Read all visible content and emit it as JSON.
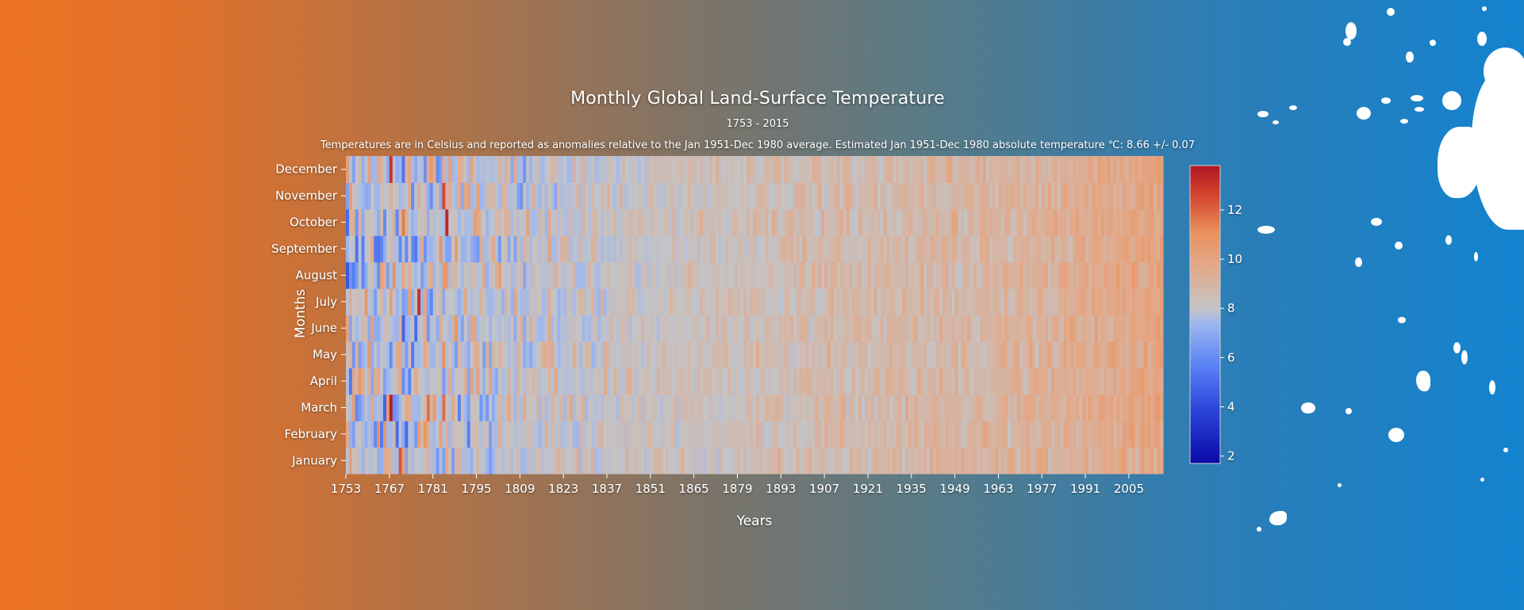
{
  "colors": {
    "scale": [
      "#0a0aa8",
      "#2a45d8",
      "#5a82f5",
      "#9db6ef",
      "#c4c4c6",
      "#e2a98a",
      "#e9935f",
      "#d4452d",
      "#b01423"
    ],
    "text": "#ffffff"
  },
  "chart_data": {
    "type": "heatmap",
    "title": "Monthly Global Land-Surface Temperature",
    "subtitle": "1753 - 2015",
    "description": "Temperatures are in Celsius and reported as anomalies relative to the Jan 1951-Dec 1980 average. Estimated Jan 1951-Dec 1980 absolute temperature ℃: 8.66 +/- 0.07",
    "xlabel": "Years",
    "ylabel": "Months",
    "x_range": [
      1753,
      2015
    ],
    "x_ticks": [
      "1753",
      "1767",
      "1781",
      "1795",
      "1809",
      "1823",
      "1837",
      "1851",
      "1865",
      "1879",
      "1893",
      "1907",
      "1921",
      "1935",
      "1949",
      "1963",
      "1977",
      "1991",
      "2005"
    ],
    "months": [
      "January",
      "February",
      "March",
      "April",
      "May",
      "June",
      "July",
      "August",
      "September",
      "October",
      "November",
      "December"
    ],
    "base_temperature": 8.66,
    "colorbar": {
      "min": 1.7,
      "max": 13.8,
      "ticks": [
        "2",
        "4",
        "6",
        "8",
        "10",
        "12"
      ]
    },
    "trend_note": "values rise from roughly 6-8 (blue/grey) in the 1750s-1850s to roughly 9-10 (orange) by the 2000s",
    "trend_points": [
      {
        "year": 1753,
        "value": 7.0
      },
      {
        "year": 1800,
        "value": 7.4
      },
      {
        "year": 1850,
        "value": 7.9
      },
      {
        "year": 1900,
        "value": 8.3
      },
      {
        "year": 1950,
        "value": 8.6
      },
      {
        "year": 1980,
        "value": 8.9
      },
      {
        "year": 2015,
        "value": 9.6
      }
    ]
  }
}
